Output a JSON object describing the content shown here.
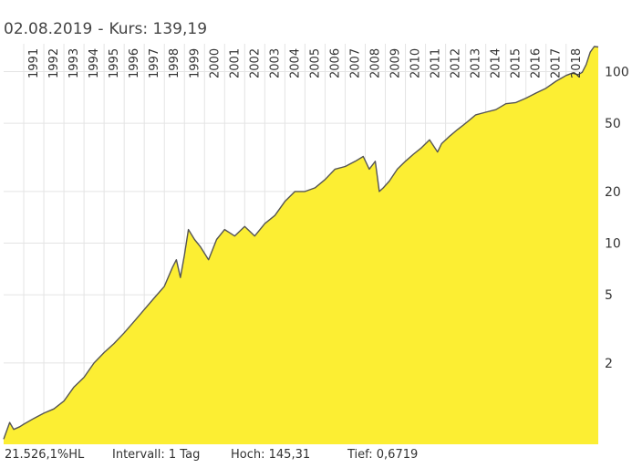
{
  "header": {
    "date": "02.08.2019",
    "separator": "-",
    "price_text": "Kurs: 139,19"
  },
  "footer": {
    "performance": "21.526,1%HL",
    "interval": "Intervall: 1 Tag",
    "high": "Hoch:  145,31",
    "low": "Tief: 0,6719"
  },
  "colors": {
    "fill": "#fcee33",
    "line": "#555555",
    "grid": "#e4e4e4"
  },
  "chart_data": {
    "type": "area",
    "y_scale": "log",
    "ylim": [
      0.6719,
      145.31
    ],
    "x_range": [
      1990.0,
      2019.6
    ],
    "x_tick_labels": [
      "1991",
      "1992",
      "1993",
      "1994",
      "1995",
      "1996",
      "1997",
      "1998",
      "1999",
      "2000",
      "2001",
      "2002",
      "2003",
      "2004",
      "2005",
      "2006",
      "2007",
      "2008",
      "2009",
      "2010",
      "2011",
      "2012",
      "2013",
      "2014",
      "2015",
      "2016",
      "2017",
      "2018"
    ],
    "y_tick_labels": [
      "100",
      "50",
      "20",
      "10",
      "5",
      "2"
    ],
    "y_tick_values": [
      100,
      50,
      20,
      10,
      5,
      2
    ],
    "last_close": 139.19,
    "series": [
      {
        "x": [
          1990.0,
          1990.3,
          1990.5,
          1990.8,
          1991.0,
          1991.5,
          1992.0,
          1992.5,
          1993.0,
          1993.5,
          1994.0,
          1994.5,
          1995.0,
          1995.5,
          1996.0,
          1996.5,
          1997.0,
          1997.5,
          1998.0,
          1998.4,
          1998.6,
          1998.8,
          1999.0,
          1999.2,
          1999.5,
          1999.8,
          2000.2,
          2000.6,
          2001.0,
          2001.5,
          2002.0,
          2002.5,
          2003.0,
          2003.5,
          2004.0,
          2004.5,
          2005.0,
          2005.5,
          2006.0,
          2006.5,
          2007.0,
          2007.5,
          2007.9,
          2008.2,
          2008.5,
          2008.7,
          2008.9,
          2009.2,
          2009.6,
          2010.0,
          2010.4,
          2010.8,
          2011.2,
          2011.6,
          2011.8,
          2012.2,
          2012.6,
          2013.0,
          2013.5,
          2014.0,
          2014.5,
          2015.0,
          2015.5,
          2016.0,
          2016.5,
          2017.0,
          2017.5,
          2018.0,
          2018.3,
          2018.6,
          2018.8,
          2019.0,
          2019.2,
          2019.4,
          2019.6
        ],
        "values": [
          0.72,
          0.9,
          0.82,
          0.85,
          0.88,
          0.95,
          1.02,
          1.08,
          1.2,
          1.45,
          1.65,
          2.0,
          2.3,
          2.6,
          3.0,
          3.5,
          4.1,
          4.8,
          5.6,
          7.2,
          8.0,
          6.3,
          8.5,
          12.0,
          10.5,
          9.5,
          8.0,
          10.5,
          12.0,
          11.0,
          12.5,
          11.0,
          13.0,
          14.5,
          17.5,
          20.0,
          20.0,
          21.0,
          23.5,
          27.0,
          28.0,
          30.0,
          32.0,
          27.0,
          30.0,
          20.0,
          21.0,
          23.0,
          27.0,
          30.0,
          33.0,
          36.0,
          40.0,
          34.0,
          38.0,
          42.0,
          46.0,
          50.0,
          56.0,
          58.0,
          60.0,
          65.0,
          66.0,
          70.0,
          75.0,
          80.0,
          88.0,
          95.0,
          98.0,
          96.0,
          99.0,
          110.0,
          130.0,
          140.0,
          139.19
        ]
      }
    ]
  }
}
